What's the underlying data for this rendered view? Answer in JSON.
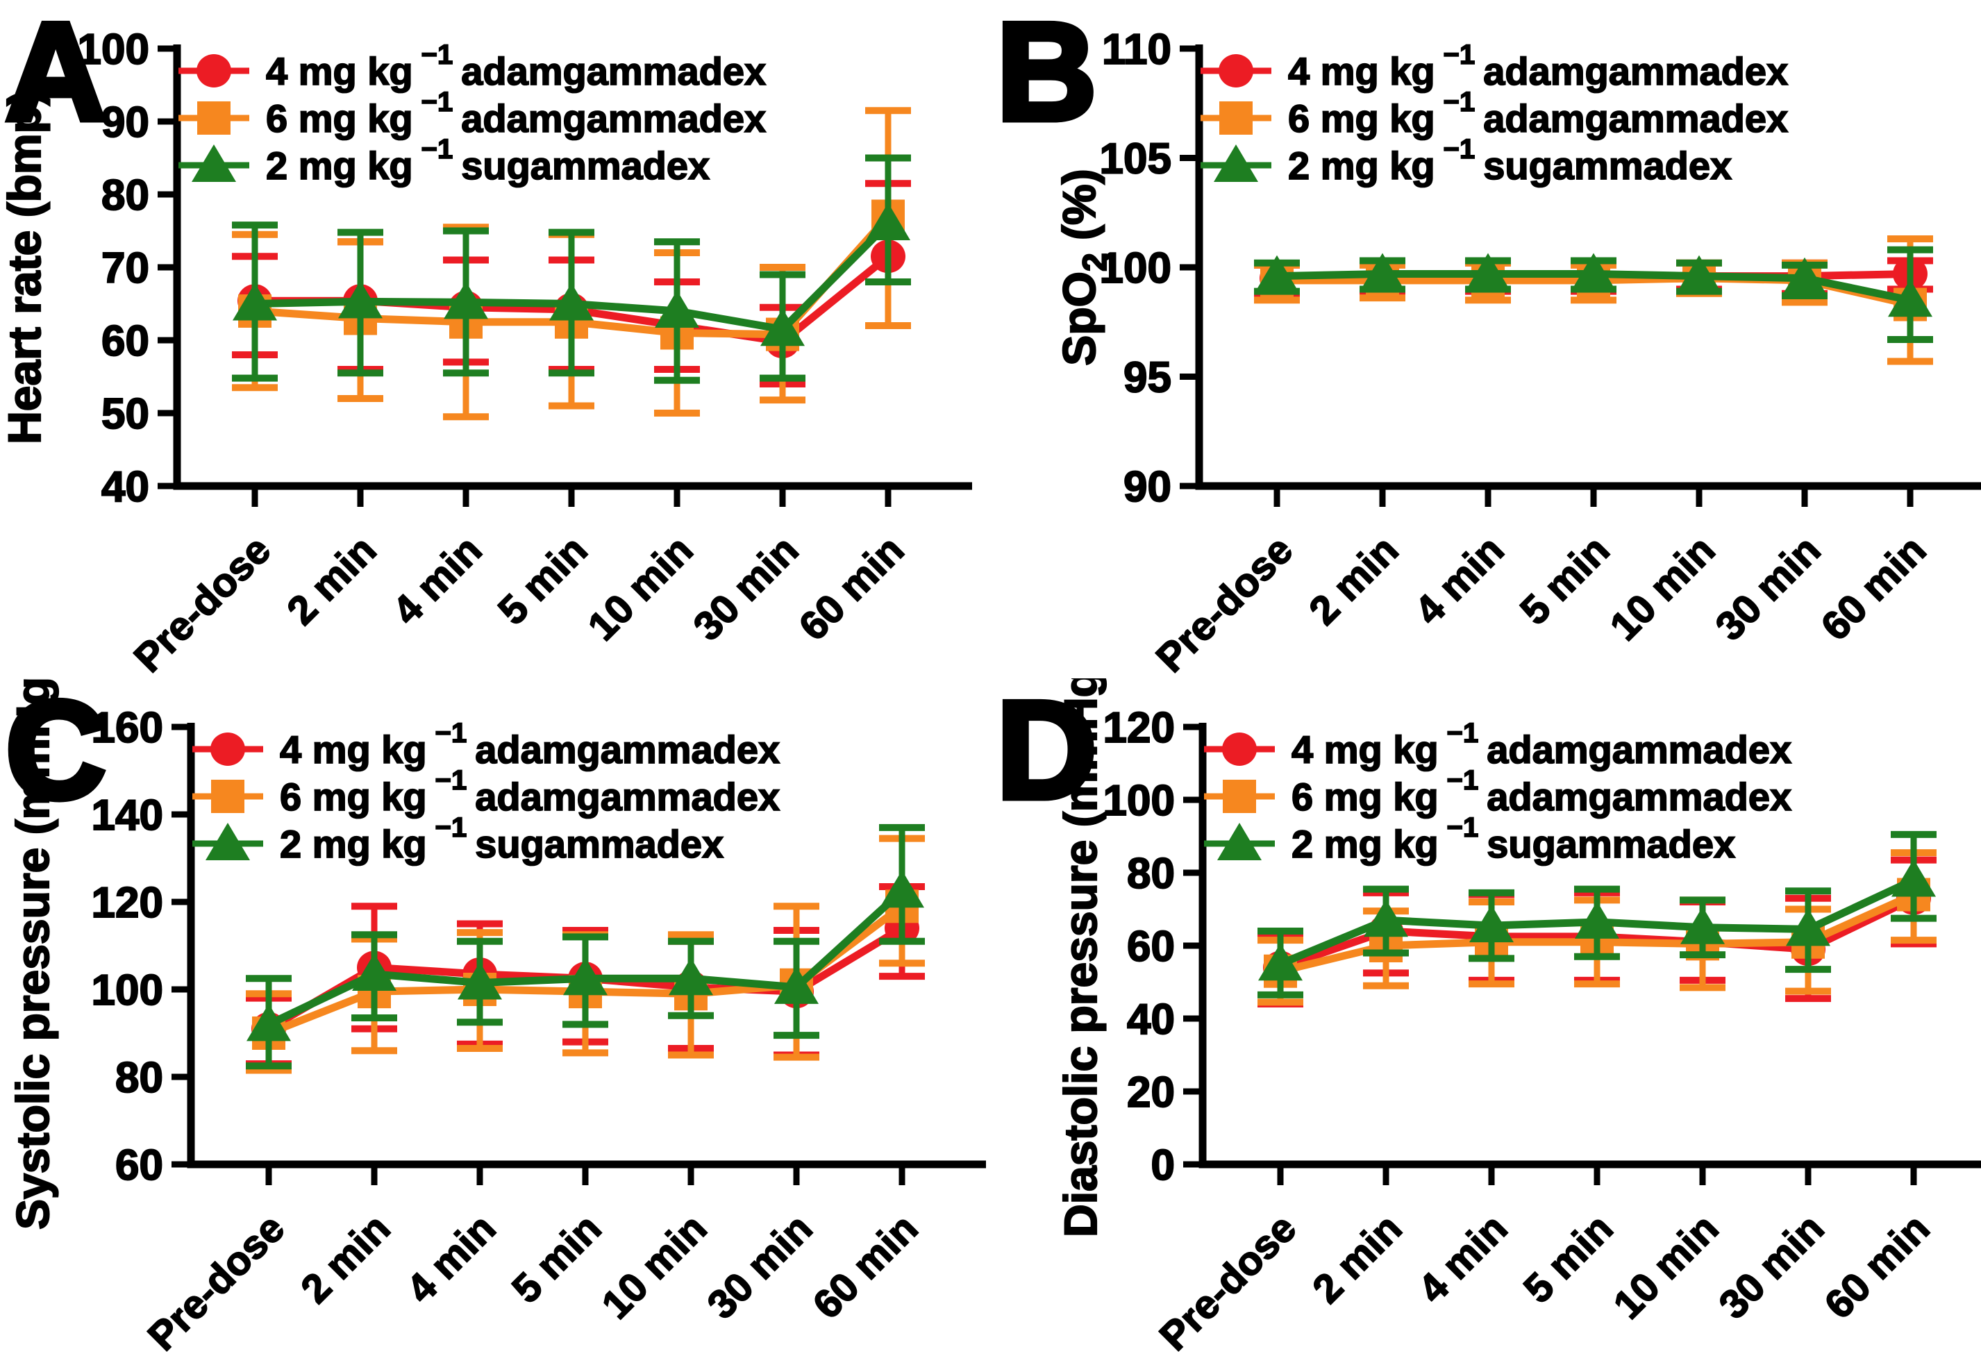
{
  "figure": {
    "background": "#ffffff",
    "axis_color": "#000000"
  },
  "colors": {
    "red": "#EC1C24",
    "orange": "#F6871F",
    "green": "#1E7E21",
    "axis": "#000000",
    "text": "#000000"
  },
  "legend": {
    "entries": [
      {
        "series": "red",
        "marker": "circle",
        "dose": "4 mg kg",
        "exponent": "−1",
        "agent": "adamgammadex"
      },
      {
        "series": "orange",
        "marker": "square",
        "dose": "6 mg kg",
        "exponent": "−1",
        "agent": "adamgammadex"
      },
      {
        "series": "green",
        "marker": "triangle",
        "dose": "2 mg kg",
        "exponent": "−1",
        "agent": "sugammadex"
      }
    ]
  },
  "categories": [
    "Pre-dose",
    "2 min",
    "4 min",
    "5 min",
    "10 min",
    "30 min",
    "60 min"
  ],
  "chart_data": [
    {
      "type": "line",
      "panel_label": "A",
      "ylabel_parts": [
        {
          "text": "Heart rate (bmp)"
        }
      ],
      "ylim": [
        40,
        100
      ],
      "yticks": [
        40,
        50,
        60,
        70,
        80,
        90,
        100
      ],
      "grid": false,
      "legend_position": "top-left-inside",
      "categories": [
        "Pre-dose",
        "2 min",
        "4 min",
        "5 min",
        "10 min",
        "30 min",
        "60 min"
      ],
      "series": [
        {
          "name": "4 mg kg −1 adamgammadex",
          "color_key": "red",
          "marker": "circle",
          "values": [
            65.4,
            65.4,
            64.5,
            64.2,
            62.0,
            59.8,
            71.5
          ],
          "err_lo": [
            58.0,
            56.0,
            57.0,
            56.0,
            56.0,
            54.0,
            62.0
          ],
          "err_hi": [
            71.5,
            73.5,
            71.0,
            71.0,
            68.0,
            64.5,
            81.5
          ]
        },
        {
          "name": "6 mg kg −1 adamgammadex",
          "color_key": "orange",
          "marker": "square",
          "values": [
            64.0,
            63.0,
            62.5,
            62.5,
            61.0,
            60.8,
            77.0
          ],
          "err_lo": [
            53.5,
            52.0,
            49.5,
            51.0,
            50.0,
            51.8,
            62.0
          ],
          "err_hi": [
            74.5,
            73.5,
            75.5,
            74.5,
            72.0,
            70.0,
            91.5
          ]
        },
        {
          "name": "2 mg kg −1 sugammadex",
          "color_key": "green",
          "marker": "triangle",
          "values": [
            65.0,
            65.3,
            65.2,
            65.0,
            64.0,
            61.5,
            76.0
          ],
          "err_lo": [
            54.8,
            55.5,
            55.5,
            55.5,
            54.5,
            54.8,
            68.0
          ],
          "err_hi": [
            75.8,
            74.8,
            75.0,
            74.8,
            73.5,
            69.0,
            85.0
          ]
        }
      ]
    },
    {
      "type": "line",
      "panel_label": "B",
      "ylabel_parts": [
        {
          "text": "SpO"
        },
        {
          "text": "2",
          "sub": true
        },
        {
          "text": " (%)"
        }
      ],
      "ylim": [
        90,
        110
      ],
      "yticks": [
        90,
        95,
        100,
        105,
        110
      ],
      "grid": false,
      "legend_position": "top-left-inside",
      "categories": [
        "Pre-dose",
        "2 min",
        "4 min",
        "5 min",
        "10 min",
        "30 min",
        "60 min"
      ],
      "series": [
        {
          "name": "4 mg kg −1 adamgammadex",
          "color_key": "red",
          "marker": "circle",
          "values": [
            99.5,
            99.6,
            99.6,
            99.6,
            99.6,
            99.6,
            99.7
          ],
          "err_lo": [
            98.7,
            98.9,
            98.9,
            98.9,
            99.0,
            98.8,
            99.0
          ],
          "err_hi": [
            100.1,
            100.2,
            100.2,
            100.2,
            100.2,
            100.2,
            100.3
          ]
        },
        {
          "name": "6 mg kg −1 adamgammadex",
          "color_key": "orange",
          "marker": "square",
          "values": [
            99.4,
            99.4,
            99.4,
            99.4,
            99.5,
            99.4,
            98.3
          ],
          "err_lo": [
            98.5,
            98.6,
            98.5,
            98.5,
            98.8,
            98.4,
            95.7
          ],
          "err_hi": [
            100.1,
            100.1,
            100.2,
            100.1,
            100.2,
            100.2,
            101.3
          ]
        },
        {
          "name": "2 mg kg −1 sugammadex",
          "color_key": "green",
          "marker": "triangle",
          "values": [
            99.6,
            99.7,
            99.7,
            99.7,
            99.6,
            99.5,
            98.5
          ],
          "err_lo": [
            98.9,
            99.0,
            99.0,
            99.0,
            98.9,
            98.7,
            96.7
          ],
          "err_hi": [
            100.2,
            100.3,
            100.3,
            100.3,
            100.2,
            100.1,
            100.8
          ]
        }
      ]
    },
    {
      "type": "line",
      "panel_label": "C",
      "ylabel_parts": [
        {
          "text": "Systolic pressure (mmHg)"
        }
      ],
      "ylim": [
        60,
        160
      ],
      "yticks": [
        60,
        80,
        100,
        120,
        140,
        160
      ],
      "grid": false,
      "legend_position": "top-left-inside",
      "categories": [
        "Pre-dose",
        "2 min",
        "4 min",
        "5 min",
        "10 min",
        "30 min",
        "60 min"
      ],
      "series": [
        {
          "name": "4 mg kg −1 adamgammadex",
          "color_key": "red",
          "marker": "circle",
          "values": [
            91.0,
            105.0,
            103.5,
            102.5,
            100.5,
            99.5,
            114.0
          ],
          "err_lo": [
            83.0,
            91.0,
            87.5,
            88.0,
            86.5,
            85.0,
            103.0
          ],
          "err_hi": [
            98.0,
            119.0,
            115.0,
            113.5,
            111.0,
            113.5,
            123.5
          ]
        },
        {
          "name": "6 mg kg −1 adamgammadex",
          "color_key": "orange",
          "marker": "square",
          "values": [
            90.0,
            99.5,
            100.0,
            99.5,
            99.0,
            101.0,
            119.0
          ],
          "err_lo": [
            81.5,
            86.0,
            86.5,
            85.5,
            85.0,
            84.5,
            106.0
          ],
          "err_hi": [
            99.0,
            111.5,
            113.0,
            112.5,
            112.5,
            119.0,
            134.5
          ]
        },
        {
          "name": "2 mg kg −1 sugammadex",
          "color_key": "green",
          "marker": "triangle",
          "values": [
            92.0,
            103.5,
            101.5,
            102.5,
            102.5,
            100.5,
            122.5
          ],
          "err_lo": [
            82.5,
            93.5,
            92.5,
            92.0,
            94.0,
            89.5,
            111.0
          ],
          "err_hi": [
            102.5,
            112.5,
            111.0,
            112.0,
            111.0,
            111.0,
            137.0
          ]
        }
      ]
    },
    {
      "type": "line",
      "panel_label": "D",
      "ylabel_parts": [
        {
          "text": "Diastolic pressure (mmHg)"
        }
      ],
      "ylim": [
        0,
        120
      ],
      "yticks": [
        0,
        20,
        40,
        60,
        80,
        100,
        120
      ],
      "grid": false,
      "legend_position": "top-left-inside",
      "categories": [
        "Pre-dose",
        "2 min",
        "4 min",
        "5 min",
        "10 min",
        "30 min",
        "60 min"
      ],
      "series": [
        {
          "name": "4 mg kg −1 adamgammadex",
          "color_key": "red",
          "marker": "circle",
          "values": [
            54.0,
            64.0,
            62.5,
            62.5,
            61.0,
            59.0,
            73.0
          ],
          "err_lo": [
            44.0,
            52.5,
            50.5,
            50.5,
            50.5,
            45.5,
            60.5
          ],
          "err_hi": [
            63.0,
            74.5,
            74.0,
            74.5,
            72.0,
            73.0,
            83.5
          ]
        },
        {
          "name": "6 mg kg −1 adamgammadex",
          "color_key": "orange",
          "marker": "square",
          "values": [
            53.0,
            60.0,
            61.0,
            61.0,
            60.5,
            61.0,
            74.0
          ],
          "err_lo": [
            44.5,
            49.0,
            49.5,
            49.5,
            48.5,
            47.5,
            61.5
          ],
          "err_hi": [
            61.5,
            69.5,
            72.0,
            72.5,
            72.5,
            70.0,
            85.5
          ]
        },
        {
          "name": "2 mg kg −1 sugammadex",
          "color_key": "green",
          "marker": "triangle",
          "values": [
            55.0,
            67.0,
            65.5,
            66.5,
            65.0,
            64.5,
            78.0
          ],
          "err_lo": [
            46.5,
            58.0,
            56.5,
            57.0,
            57.5,
            53.5,
            67.5
          ],
          "err_hi": [
            64.0,
            75.5,
            74.5,
            75.5,
            72.5,
            75.0,
            90.5
          ]
        }
      ]
    }
  ]
}
